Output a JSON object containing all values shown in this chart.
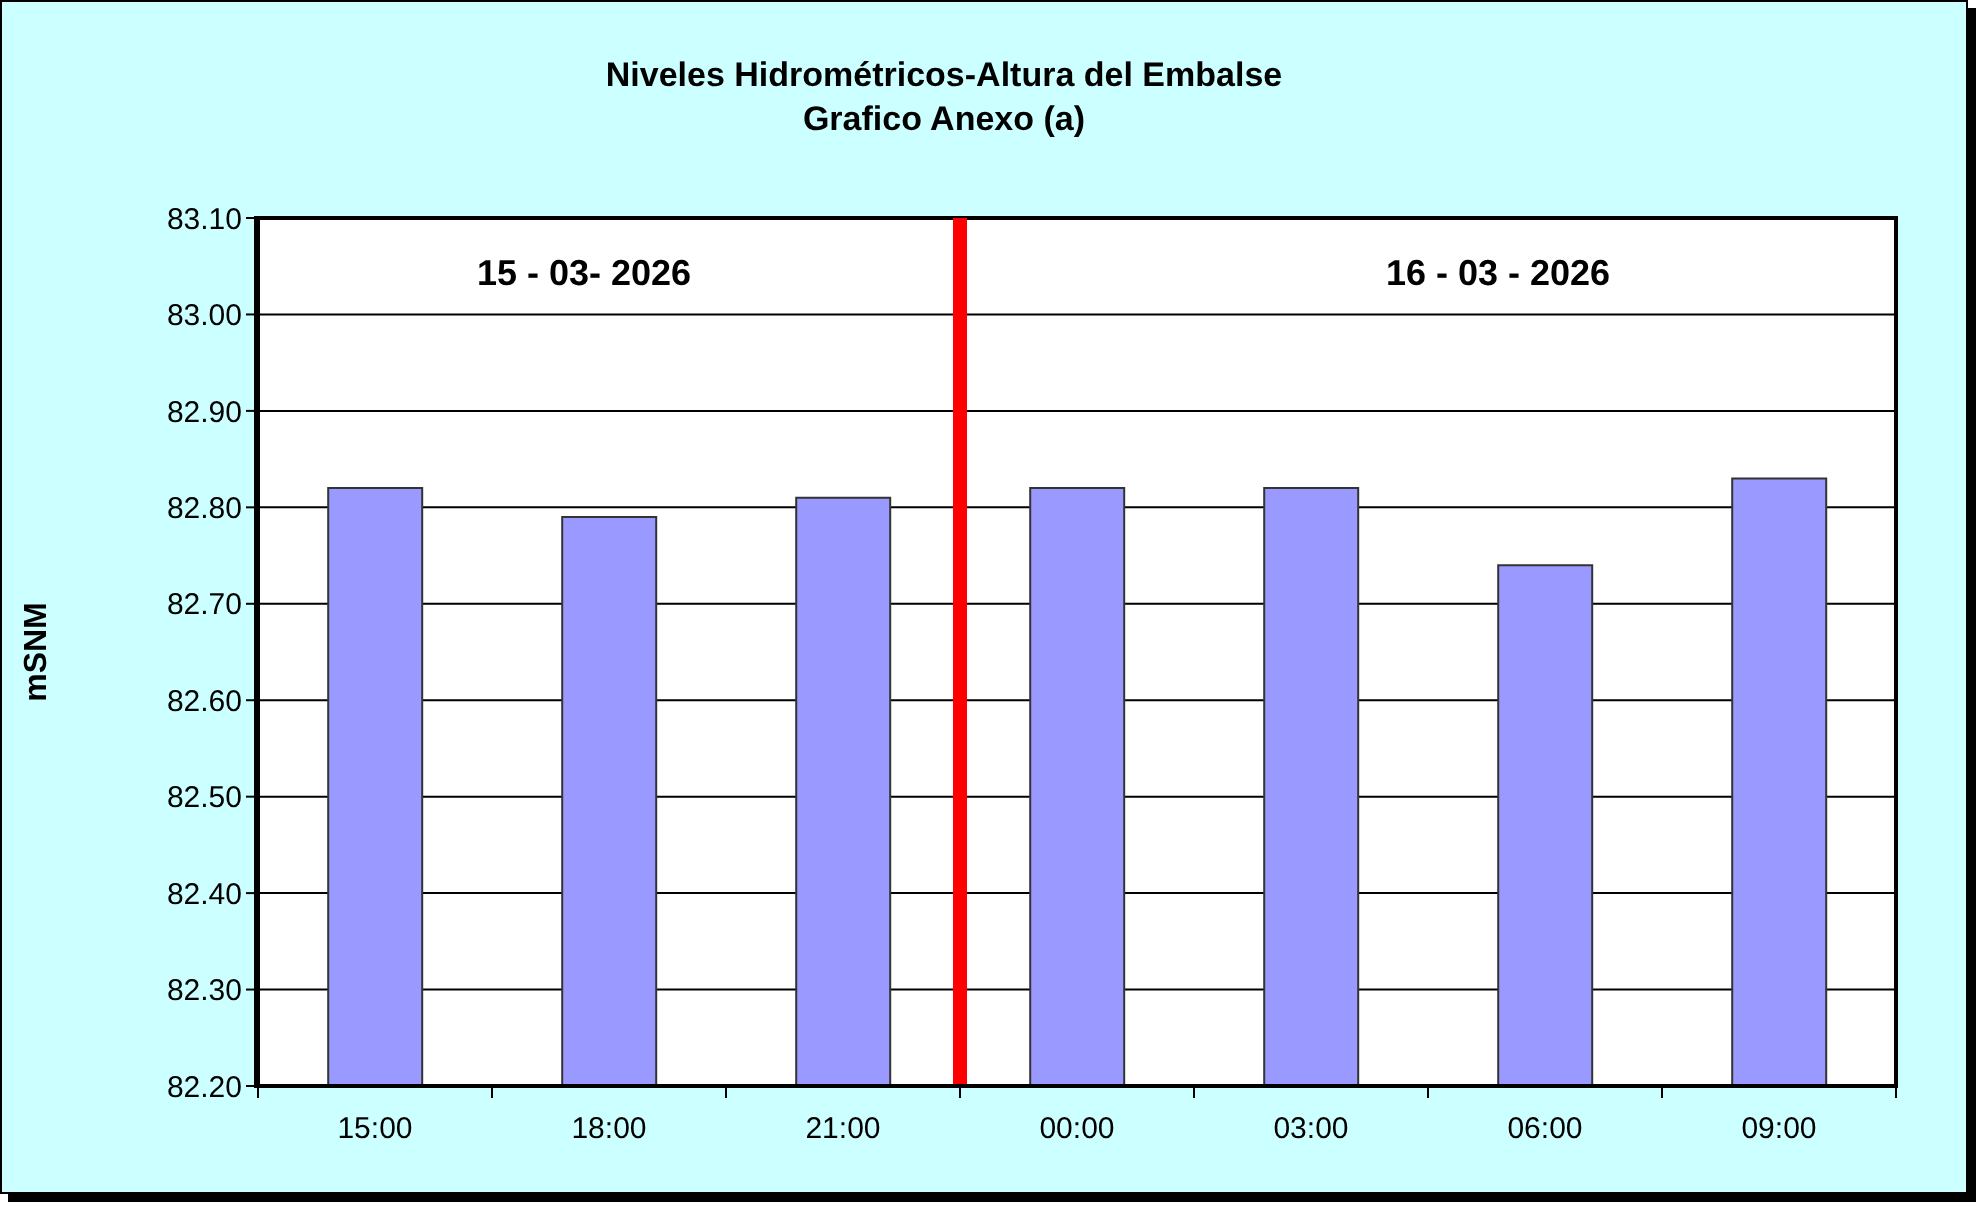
{
  "chart_data": {
    "type": "bar",
    "title": "Niveles Hidrométricos-Altura del Embalse",
    "subtitle": "Grafico Anexo (a)",
    "ylabel": "mSNM",
    "x": [
      "2026-03-15T15:00",
      "2026-03-15T18:00",
      "2026-03-15T21:00",
      "2026-03-16T00:00",
      "2026-03-16T03:00",
      "2026-03-16T06:00",
      "2026-03-16T09:00"
    ],
    "values": [
      82.82,
      82.79,
      82.81,
      82.82,
      82.82,
      82.74,
      82.83
    ],
    "color": "#9999ff",
    "xlim": [
      "2026-03-15T13:30",
      "2026-03-16T10:30"
    ],
    "xticks": [
      {
        "value": "2026-03-15T13:30",
        "label": null
      },
      {
        "value": "2026-03-15T15:00",
        "label": "15:00"
      },
      {
        "value": "2026-03-15T16:30",
        "label": null
      },
      {
        "value": "2026-03-15T18:00",
        "label": "18:00"
      },
      {
        "value": "2026-03-15T19:30",
        "label": null
      },
      {
        "value": "2026-03-15T21:00",
        "label": "21:00"
      },
      {
        "value": "2026-03-15T22:30",
        "label": null
      },
      {
        "value": "2026-03-16T00:00",
        "label": "00:00"
      },
      {
        "value": "2026-03-16T01:30",
        "label": null
      },
      {
        "value": "2026-03-16T03:00",
        "label": "03:00"
      },
      {
        "value": "2026-03-16T04:30",
        "label": null
      },
      {
        "value": "2026-03-16T06:00",
        "label": "06:00"
      },
      {
        "value": "2026-03-16T07:30",
        "label": null
      },
      {
        "value": "2026-03-16T09:00",
        "label": "09:00"
      },
      {
        "value": "2026-03-16T10:30",
        "label": null
      }
    ],
    "ylim": [
      82.2,
      83.1
    ],
    "yticks": [
      {
        "value": 82.2,
        "label": "82.20"
      },
      {
        "value": 82.3,
        "label": "82.30"
      },
      {
        "value": 82.4,
        "label": "82.40"
      },
      {
        "value": 82.5,
        "label": "82.50"
      },
      {
        "value": 82.6,
        "label": "82.60"
      },
      {
        "value": 82.7,
        "label": "82.70"
      },
      {
        "value": 82.8,
        "label": "82.80"
      },
      {
        "value": 82.9,
        "label": "82.90"
      },
      {
        "value": 83.0,
        "label": "83.00"
      },
      {
        "value": 83.1,
        "label": "83.10"
      }
    ],
    "grid": "y",
    "ref_lines": [
      {
        "axis": "x",
        "value": "2026-03-15T22:30",
        "color": "#ff0000"
      }
    ],
    "annotations": [
      "15 - 03- 2026",
      "16 - 03 - 2026"
    ]
  }
}
